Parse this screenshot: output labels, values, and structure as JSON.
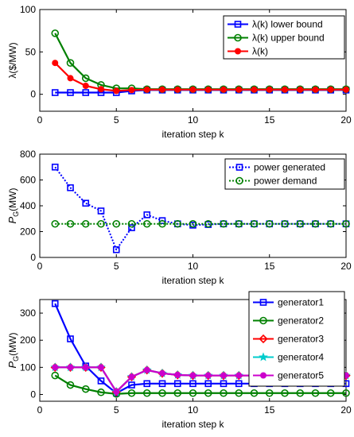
{
  "chart_data": [
    {
      "type": "line",
      "xlabel": "iteration step k",
      "ylabel": "λ($/MW)",
      "xlim": [
        0,
        20
      ],
      "ylim": [
        -20,
        100
      ],
      "xticks": [
        0,
        5,
        10,
        15,
        20
      ],
      "yticks": [
        0,
        50,
        100
      ],
      "legend": "top-right",
      "grid": false,
      "x": [
        1,
        2,
        3,
        4,
        5,
        6,
        7,
        8,
        9,
        10,
        11,
        12,
        13,
        14,
        15,
        16,
        17,
        18,
        19,
        20
      ],
      "series": [
        {
          "name": "λ(k) lower bound",
          "color": "#0000ff",
          "marker": "square",
          "values": [
            2,
            2,
            2,
            2,
            2,
            4,
            5,
            5,
            5,
            5,
            5,
            5,
            5,
            5,
            5,
            5,
            5,
            5,
            5,
            5
          ]
        },
        {
          "name": "λ(k) upper bound",
          "color": "#008000",
          "marker": "circle",
          "values": [
            72,
            37,
            19,
            11,
            7,
            7,
            6,
            6,
            6,
            6,
            6,
            6,
            6,
            6,
            6,
            6,
            6,
            6,
            6,
            6
          ]
        },
        {
          "name": "λ(k)",
          "color": "#ff0000",
          "marker": "dot",
          "values": [
            37,
            19,
            10,
            6,
            4,
            5,
            5.5,
            5.5,
            5.5,
            5.5,
            5.5,
            5.5,
            5.5,
            5.5,
            5.5,
            5.5,
            5.5,
            5.5,
            5.5,
            5.5
          ]
        }
      ]
    },
    {
      "type": "line",
      "xlabel": "iteration step k",
      "ylabel": "P_G(MW)",
      "ylabel_main": "P",
      "ylabel_sub": "G",
      "ylabel_rest": "(MW)",
      "xlim": [
        0,
        20
      ],
      "ylim": [
        0,
        800
      ],
      "xticks": [
        0,
        5,
        10,
        15,
        20
      ],
      "yticks": [
        0,
        200,
        400,
        600,
        800
      ],
      "legend": "top-right",
      "grid": false,
      "x": [
        1,
        2,
        3,
        4,
        5,
        6,
        7,
        8,
        9,
        10,
        11,
        12,
        13,
        14,
        15,
        16,
        17,
        18,
        19,
        20
      ],
      "series": [
        {
          "name": "power generated",
          "color": "#0000ff",
          "marker": "square",
          "dash": "dotted",
          "values": [
            700,
            540,
            420,
            360,
            60,
            230,
            330,
            285,
            260,
            250,
            255,
            260,
            260,
            260,
            260,
            260,
            260,
            260,
            260,
            260
          ]
        },
        {
          "name": "power demand",
          "color": "#008000",
          "marker": "circle",
          "dash": "dotted",
          "values": [
            260,
            260,
            260,
            260,
            260,
            260,
            260,
            260,
            260,
            260,
            260,
            260,
            260,
            260,
            260,
            260,
            260,
            260,
            260,
            260
          ]
        }
      ]
    },
    {
      "type": "line",
      "xlabel": "iteration step k",
      "ylabel": "P_G(MW)",
      "ylabel_main": "P",
      "ylabel_sub": "G",
      "ylabel_rest": "(MW)",
      "xlim": [
        0,
        20
      ],
      "ylim": [
        -25,
        350
      ],
      "xticks": [
        0,
        5,
        10,
        15,
        20
      ],
      "yticks": [
        0,
        100,
        200,
        300
      ],
      "legend": "top-right",
      "grid": false,
      "x": [
        1,
        2,
        3,
        4,
        5,
        6,
        7,
        8,
        9,
        10,
        11,
        12,
        13,
        14,
        15,
        16,
        17,
        18,
        19,
        20
      ],
      "series": [
        {
          "name": "generator1",
          "color": "#0000ff",
          "marker": "square",
          "values": [
            335,
            205,
            105,
            50,
            5,
            35,
            40,
            40,
            40,
            40,
            40,
            40,
            40,
            40,
            40,
            40,
            40,
            40,
            40,
            40
          ]
        },
        {
          "name": "generator2",
          "color": "#008000",
          "marker": "circle",
          "values": [
            70,
            35,
            20,
            8,
            2,
            5,
            5,
            5,
            5,
            5,
            5,
            5,
            5,
            5,
            5,
            5,
            5,
            5,
            5,
            5
          ]
        },
        {
          "name": "generator3",
          "color": "#ff0000",
          "marker": "diamond",
          "values": [
            100,
            100,
            100,
            100,
            10,
            65,
            90,
            78,
            72,
            70,
            70,
            70,
            70,
            70,
            70,
            70,
            70,
            70,
            70,
            70
          ]
        },
        {
          "name": "generator4",
          "color": "#00cccc",
          "marker": "star",
          "values": [
            100,
            100,
            100,
            100,
            10,
            65,
            90,
            78,
            72,
            70,
            70,
            70,
            70,
            70,
            70,
            70,
            70,
            70,
            70,
            70
          ]
        },
        {
          "name": "generator5",
          "color": "#cc00cc",
          "marker": "dot",
          "values": [
            100,
            100,
            100,
            100,
            10,
            65,
            90,
            78,
            72,
            70,
            70,
            70,
            70,
            70,
            70,
            70,
            70,
            70,
            70,
            70
          ]
        }
      ]
    }
  ]
}
